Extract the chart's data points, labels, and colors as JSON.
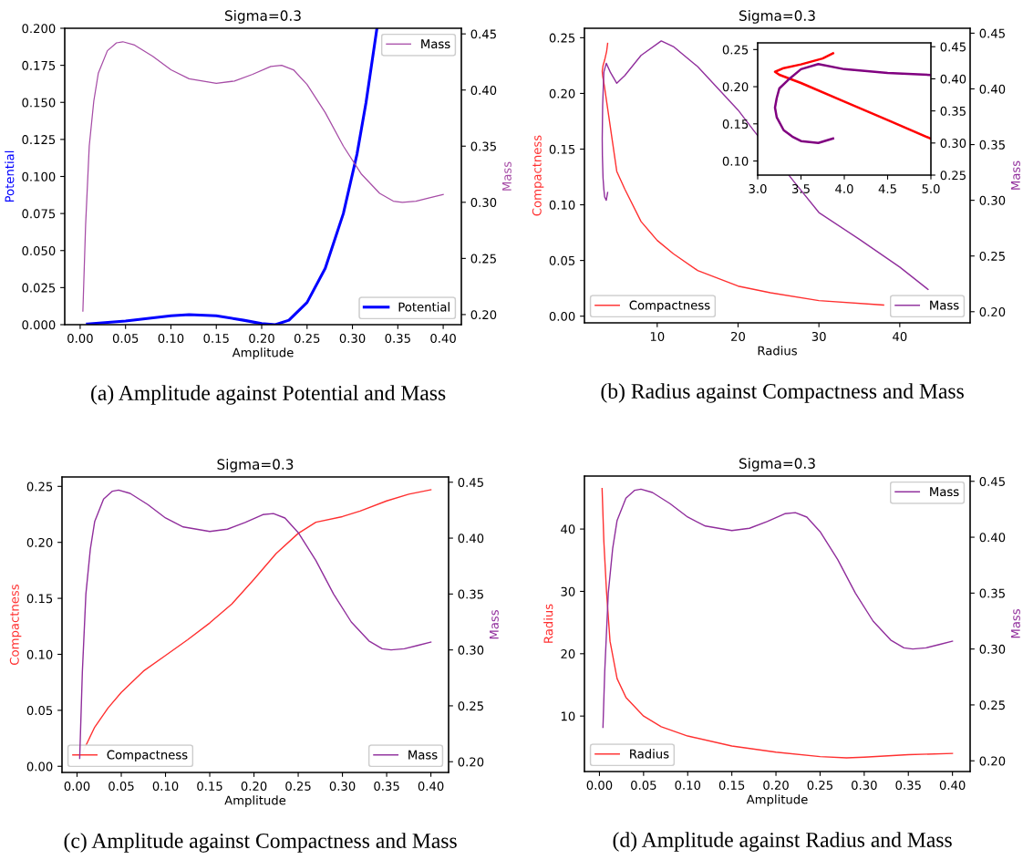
{
  "chart_data": [
    {
      "type": "line",
      "title": "Sigma=0.3",
      "xlabel": "Amplitude",
      "ylabel": "Potential",
      "y2label": "Mass",
      "xlim": [
        -0.017,
        0.42
      ],
      "xticks": [
        {
          "value": 0,
          "label": "0.00"
        },
        {
          "value": 0.05,
          "label": "0.05"
        },
        {
          "value": 0.1,
          "label": "0.10"
        },
        {
          "value": 0.15,
          "label": "0.15"
        },
        {
          "value": 0.2,
          "label": "0.20"
        },
        {
          "value": 0.25,
          "label": "0.25"
        },
        {
          "value": 0.3,
          "label": "0.30"
        },
        {
          "value": 0.35,
          "label": "0.35"
        },
        {
          "value": 0.4,
          "label": "0.40"
        }
      ],
      "ylim": [
        0,
        0.2
      ],
      "yticks": [
        {
          "value": 0,
          "label": "0.000"
        },
        {
          "value": 0.025,
          "label": "0.025"
        },
        {
          "value": 0.05,
          "label": "0.050"
        },
        {
          "value": 0.075,
          "label": "0.075"
        },
        {
          "value": 0.1,
          "label": "0.100"
        },
        {
          "value": 0.125,
          "label": "0.125"
        },
        {
          "value": 0.15,
          "label": "0.150"
        },
        {
          "value": 0.175,
          "label": "0.175"
        },
        {
          "value": 0.2,
          "label": "0.200"
        }
      ],
      "y2lim": [
        0.191,
        0.455
      ],
      "y2ticks": [
        {
          "value": 0.2,
          "label": "0.20"
        },
        {
          "value": 0.25,
          "label": "0.25"
        },
        {
          "value": 0.3,
          "label": "0.30"
        },
        {
          "value": 0.35,
          "label": "0.35"
        },
        {
          "value": 0.4,
          "label": "0.40"
        },
        {
          "value": 0.45,
          "label": "0.45"
        }
      ],
      "legend": [
        "bottom right",
        "top right"
      ],
      "annotations": [
        "(a) Amplitude against Potential and Mass"
      ],
      "series": [
        {
          "name": "Potential",
          "color": "#0000ff",
          "x": [
            0.008,
            0.05,
            0.1,
            0.12,
            0.15,
            0.18,
            0.2,
            0.215,
            0.23,
            0.25,
            0.27,
            0.29,
            0.305,
            0.315,
            0.327
          ],
          "values": [
            0.0005,
            0.0025,
            0.006,
            0.0068,
            0.006,
            0.003,
            0.0007,
            0.0,
            0.003,
            0.015,
            0.038,
            0.075,
            0.115,
            0.15,
            0.2
          ]
        },
        {
          "name": "Mass",
          "color": "#a64ca6",
          "axis": "y2",
          "x": [
            0.003,
            0.006,
            0.01,
            0.015,
            0.02,
            0.03,
            0.04,
            0.047,
            0.06,
            0.08,
            0.1,
            0.12,
            0.15,
            0.17,
            0.19,
            0.21,
            0.222,
            0.235,
            0.25,
            0.27,
            0.29,
            0.31,
            0.33,
            0.345,
            0.355,
            0.37,
            0.385,
            0.4
          ],
          "values": [
            0.203,
            0.28,
            0.35,
            0.39,
            0.415,
            0.435,
            0.442,
            0.443,
            0.44,
            0.43,
            0.418,
            0.41,
            0.406,
            0.408,
            0.414,
            0.421,
            0.422,
            0.418,
            0.405,
            0.38,
            0.35,
            0.325,
            0.308,
            0.301,
            0.3,
            0.301,
            0.304,
            0.307
          ]
        }
      ]
    },
    {
      "type": "line",
      "title": "Sigma=0.3",
      "xlabel": "Radius",
      "ylabel": "Compactness",
      "y2label": "Mass",
      "xlim": [
        1.0,
        48.7
      ],
      "xticks": [
        10,
        20,
        30,
        40
      ],
      "ylim": [
        -0.006,
        0.2585
      ],
      "yticks": [
        {
          "value": 0,
          "label": "0.00"
        },
        {
          "value": 0.05,
          "label": "0.05"
        },
        {
          "value": 0.1,
          "label": "0.10"
        },
        {
          "value": 0.15,
          "label": "0.15"
        },
        {
          "value": 0.2,
          "label": "0.20"
        },
        {
          "value": 0.25,
          "label": "0.25"
        }
      ],
      "y2lim": [
        0.19,
        0.4544
      ],
      "y2ticks": [
        {
          "value": 0.2,
          "label": "0.20"
        },
        {
          "value": 0.25,
          "label": "0.25"
        },
        {
          "value": 0.3,
          "label": "0.30"
        },
        {
          "value": 0.35,
          "label": "0.35"
        },
        {
          "value": 0.4,
          "label": "0.40"
        },
        {
          "value": 0.45,
          "label": "0.45"
        }
      ],
      "legend": [
        "bottom left",
        "bottom right"
      ],
      "annotations": [
        "(b) Radius against Compactness and Mass"
      ],
      "series": [
        {
          "name": "Compactness",
          "color": "#ff3030",
          "x": [
            38,
            30,
            24,
            20,
            15,
            12,
            10,
            8,
            6,
            5,
            4.5,
            4,
            3.5,
            3.25,
            3.2,
            3.3,
            3.5,
            3.75,
            3.87
          ],
          "values": [
            0.01,
            0.014,
            0.021,
            0.027,
            0.041,
            0.056,
            0.068,
            0.085,
            0.114,
            0.13,
            0.155,
            0.18,
            0.205,
            0.216,
            0.22,
            0.225,
            0.23,
            0.238,
            0.245
          ]
        },
        {
          "name": "Mass",
          "color": "#902e9c",
          "axis": "y2",
          "x": [
            43.5,
            40,
            35,
            30,
            27,
            22,
            20,
            15,
            12,
            10.5,
            8,
            6,
            5,
            4.2,
            3.7,
            3.4,
            3.25,
            3.2,
            3.22,
            3.3,
            3.4,
            3.5,
            3.7,
            3.87
          ],
          "values": [
            0.22,
            0.24,
            0.265,
            0.289,
            0.316,
            0.362,
            0.381,
            0.42,
            0.438,
            0.443,
            0.43,
            0.412,
            0.405,
            0.415,
            0.423,
            0.415,
            0.385,
            0.355,
            0.34,
            0.32,
            0.31,
            0.303,
            0.3,
            0.307
          ]
        }
      ]
    },
    {
      "type": "line",
      "xlim": [
        3.0,
        5.0
      ],
      "xticks": [
        {
          "value": 3,
          "label": "3.0"
        },
        {
          "value": 3.5,
          "label": "3.5"
        },
        {
          "value": 4,
          "label": "4.0"
        },
        {
          "value": 4.5,
          "label": "4.5"
        },
        {
          "value": 5,
          "label": "5.0"
        }
      ],
      "ylim": [
        0.081,
        0.259
      ],
      "yticks": [
        {
          "value": 0.1,
          "label": "0.10"
        },
        {
          "value": 0.15,
          "label": "0.15"
        },
        {
          "value": 0.2,
          "label": "0.20"
        },
        {
          "value": 0.25,
          "label": "0.25"
        }
      ],
      "y2lim": [
        0.25,
        0.456
      ],
      "y2ticks": [
        {
          "value": 0.25,
          "label": "0.25"
        },
        {
          "value": 0.3,
          "label": "0.30"
        },
        {
          "value": 0.35,
          "label": "0.35"
        },
        {
          "value": 0.4,
          "label": "0.40"
        },
        {
          "value": 0.45,
          "label": "0.45"
        }
      ],
      "series": [
        {
          "color": "#ff0000",
          "x": [
            5.0,
            4.5,
            4.0,
            3.5,
            3.25,
            3.2,
            3.3,
            3.5,
            3.75,
            3.87
          ],
          "values": [
            0.13,
            0.155,
            0.18,
            0.205,
            0.216,
            0.22,
            0.225,
            0.23,
            0.238,
            0.245
          ]
        },
        {
          "color": "#800080",
          "axis": "y2",
          "x": [
            5.0,
            4.5,
            4.0,
            3.7,
            3.5,
            3.35,
            3.25,
            3.22,
            3.2,
            3.22,
            3.3,
            3.4,
            3.5,
            3.7,
            3.87
          ],
          "values": [
            0.406,
            0.409,
            0.415,
            0.423,
            0.415,
            0.398,
            0.385,
            0.37,
            0.355,
            0.34,
            0.32,
            0.31,
            0.303,
            0.3,
            0.307
          ]
        }
      ]
    },
    {
      "type": "line",
      "title": "Sigma=0.3",
      "xlabel": "Amplitude",
      "ylabel": "Compactness",
      "y2label": "Mass",
      "xlim": [
        -0.017,
        0.42
      ],
      "xticks": [
        {
          "value": 0,
          "label": "0.00"
        },
        {
          "value": 0.05,
          "label": "0.05"
        },
        {
          "value": 0.1,
          "label": "0.10"
        },
        {
          "value": 0.15,
          "label": "0.15"
        },
        {
          "value": 0.2,
          "label": "0.20"
        },
        {
          "value": 0.25,
          "label": "0.25"
        },
        {
          "value": 0.3,
          "label": "0.30"
        },
        {
          "value": 0.35,
          "label": "0.35"
        },
        {
          "value": 0.4,
          "label": "0.40"
        }
      ],
      "ylim": [
        -0.0055,
        0.2584
      ],
      "yticks": [
        {
          "value": 0,
          "label": "0.00"
        },
        {
          "value": 0.05,
          "label": "0.05"
        },
        {
          "value": 0.1,
          "label": "0.10"
        },
        {
          "value": 0.15,
          "label": "0.15"
        },
        {
          "value": 0.2,
          "label": "0.20"
        },
        {
          "value": 0.25,
          "label": "0.25"
        }
      ],
      "y2lim": [
        0.1904,
        0.4547
      ],
      "y2ticks": [
        {
          "value": 0.2,
          "label": "0.20"
        },
        {
          "value": 0.25,
          "label": "0.25"
        },
        {
          "value": 0.3,
          "label": "0.30"
        },
        {
          "value": 0.35,
          "label": "0.35"
        },
        {
          "value": 0.4,
          "label": "0.40"
        },
        {
          "value": 0.45,
          "label": "0.45"
        }
      ],
      "legend": [
        "bottom left",
        "bottom right"
      ],
      "annotations": [
        "(c) Amplitude against Compactness and Mass"
      ],
      "series": [
        {
          "name": "Compactness",
          "color": "#ff3030",
          "x": [
            0.006,
            0.02,
            0.035,
            0.05,
            0.075,
            0.1,
            0.125,
            0.15,
            0.175,
            0.2,
            0.225,
            0.25,
            0.27,
            0.3,
            0.32,
            0.35,
            0.375,
            0.4
          ],
          "values": [
            0.012,
            0.035,
            0.052,
            0.066,
            0.085,
            0.099,
            0.113,
            0.128,
            0.145,
            0.167,
            0.19,
            0.208,
            0.218,
            0.223,
            0.228,
            0.237,
            0.243,
            0.247
          ]
        },
        {
          "name": "Mass",
          "color": "#902e9c",
          "axis": "y2",
          "x": [
            0.003,
            0.006,
            0.01,
            0.015,
            0.02,
            0.03,
            0.04,
            0.047,
            0.06,
            0.08,
            0.1,
            0.12,
            0.15,
            0.17,
            0.19,
            0.21,
            0.222,
            0.235,
            0.25,
            0.27,
            0.29,
            0.31,
            0.33,
            0.345,
            0.355,
            0.37,
            0.385,
            0.4
          ],
          "values": [
            0.203,
            0.28,
            0.35,
            0.39,
            0.415,
            0.435,
            0.442,
            0.443,
            0.44,
            0.43,
            0.418,
            0.41,
            0.406,
            0.408,
            0.414,
            0.421,
            0.422,
            0.418,
            0.405,
            0.38,
            0.35,
            0.325,
            0.308,
            0.301,
            0.3,
            0.301,
            0.304,
            0.307
          ]
        }
      ]
    },
    {
      "type": "line",
      "title": "Sigma=0.3",
      "xlabel": "Amplitude",
      "ylabel": "Radius",
      "y2label": "Mass",
      "xlim": [
        -0.017,
        0.42
      ],
      "xticks": [
        {
          "value": 0,
          "label": "0.00"
        },
        {
          "value": 0.05,
          "label": "0.05"
        },
        {
          "value": 0.1,
          "label": "0.10"
        },
        {
          "value": 0.15,
          "label": "0.15"
        },
        {
          "value": 0.2,
          "label": "0.20"
        },
        {
          "value": 0.25,
          "label": "0.25"
        },
        {
          "value": 0.3,
          "label": "0.30"
        },
        {
          "value": 0.35,
          "label": "0.35"
        },
        {
          "value": 0.4,
          "label": "0.40"
        }
      ],
      "ylim": [
        1.1,
        48.5
      ],
      "yticks": [
        10,
        20,
        30,
        40
      ],
      "y2lim": [
        0.1904,
        0.4547
      ],
      "y2ticks": [
        {
          "value": 0.2,
          "label": "0.20"
        },
        {
          "value": 0.25,
          "label": "0.25"
        },
        {
          "value": 0.3,
          "label": "0.30"
        },
        {
          "value": 0.35,
          "label": "0.35"
        },
        {
          "value": 0.4,
          "label": "0.40"
        },
        {
          "value": 0.45,
          "label": "0.45"
        }
      ],
      "legend": [
        "bottom left",
        "top right"
      ],
      "annotations": [
        "(d) Amplitude against Radius and Mass"
      ],
      "series": [
        {
          "name": "Radius",
          "color": "#ff3030",
          "x": [
            0.003,
            0.005,
            0.008,
            0.012,
            0.02,
            0.03,
            0.05,
            0.07,
            0.1,
            0.15,
            0.2,
            0.25,
            0.28,
            0.3,
            0.35,
            0.4
          ],
          "values": [
            46.5,
            38,
            30,
            22,
            16,
            13,
            10,
            8.3,
            6.8,
            5.2,
            4.2,
            3.5,
            3.3,
            3.4,
            3.8,
            4.0
          ]
        },
        {
          "name": "Mass",
          "color": "#902e9c",
          "axis": "y2",
          "x": [
            0.004,
            0.006,
            0.01,
            0.015,
            0.02,
            0.03,
            0.04,
            0.047,
            0.06,
            0.08,
            0.1,
            0.12,
            0.15,
            0.17,
            0.19,
            0.21,
            0.222,
            0.235,
            0.25,
            0.27,
            0.29,
            0.31,
            0.33,
            0.345,
            0.355,
            0.37,
            0.385,
            0.4
          ],
          "values": [
            0.23,
            0.28,
            0.35,
            0.39,
            0.415,
            0.435,
            0.442,
            0.443,
            0.44,
            0.43,
            0.418,
            0.41,
            0.406,
            0.408,
            0.414,
            0.421,
            0.422,
            0.418,
            0.405,
            0.38,
            0.35,
            0.325,
            0.308,
            0.301,
            0.3,
            0.301,
            0.304,
            0.307
          ]
        }
      ]
    }
  ]
}
